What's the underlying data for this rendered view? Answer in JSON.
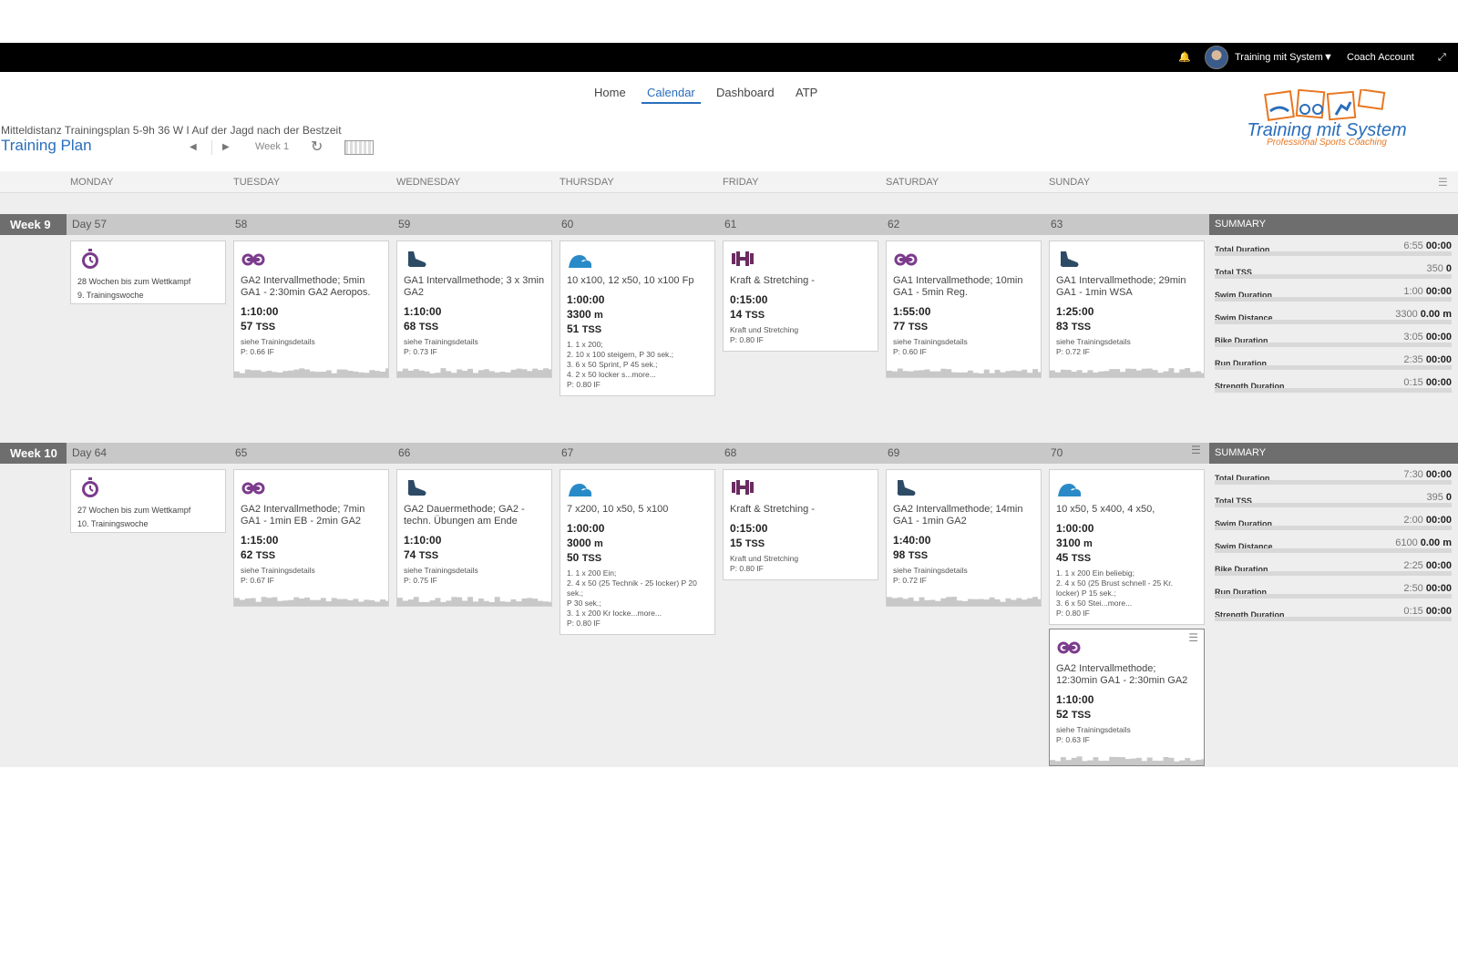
{
  "topbar": {
    "user_name": "Training mit System",
    "coach_account": "Coach Account"
  },
  "nav": {
    "items": [
      "Home",
      "Calendar",
      "Dashboard",
      "ATP"
    ],
    "active": "Calendar"
  },
  "plan": {
    "subtitle": "Mitteldistanz Trainingsplan 5-9h 36 W I Auf der Jagd nach der Bestzeit",
    "title": "Training Plan",
    "week_label": "Week 1"
  },
  "logo": {
    "text": "Training mit System",
    "sub": "Professional Sports Coaching"
  },
  "days": [
    "MONDAY",
    "TUESDAY",
    "WEDNESDAY",
    "THURSDAY",
    "FRIDAY",
    "SATURDAY",
    "SUNDAY"
  ],
  "colors": {
    "accent": "#2a6ebb",
    "bike": "#7b3b8c",
    "run": "#2e4b66",
    "swim": "#2a8ac8",
    "strength": "#6b2b60",
    "event": "#7b3b8c"
  },
  "weeks": [
    {
      "label": "Week 9",
      "day_nums": [
        "Day 57",
        "58",
        "59",
        "60",
        "61",
        "62",
        "63"
      ],
      "cards": [
        {
          "icon": "stopwatch-icon",
          "note1": "28 Wochen bis zum Wettkampf",
          "note2": "9. Trainingswoche"
        },
        {
          "icon": "bike-icon",
          "title": "GA2 Intervallmethode; 5min GA1 - 2:30min GA2 Aeropos.",
          "duration": "1:10:00",
          "tss": "57",
          "tss_unit": "TSS",
          "desc1": "siehe Trainingsdetails",
          "desc2": "P: 0.66 IF"
        },
        {
          "icon": "run-icon",
          "title": "GA1 Intervallmethode; 3 x 3min GA2",
          "duration": "1:10:00",
          "tss": "68",
          "tss_unit": "TSS",
          "desc1": "siehe Trainingsdetails",
          "desc2": "P: 0.73 IF"
        },
        {
          "icon": "swim-icon",
          "title": "10 x100, 12 x50, 10 x100 Fp",
          "duration": "1:00:00",
          "distance": "3300",
          "distance_unit": "m",
          "tss": "51",
          "tss_unit": "TSS",
          "steps": [
            "1. 1 x 200;",
            "2. 10 x 100 steigern, P 30 sek.;",
            "3. 6 x 50 Sprint, P 45 sek.;",
            "4. 2 x 50 locker s...more..."
          ],
          "desc2": "P: 0.80 IF"
        },
        {
          "icon": "strength-icon",
          "title": "Kraft & Stretching -",
          "duration": "0:15:00",
          "tss": "14",
          "tss_unit": "TSS",
          "desc1": "Kraft und Stretching",
          "desc2": "P: 0.80 IF"
        },
        {
          "icon": "bike-icon",
          "title": "GA1 Intervallmethode; 10min GA1 - 5min Reg.",
          "duration": "1:55:00",
          "tss": "77",
          "tss_unit": "TSS",
          "desc1": "siehe Trainingsdetails",
          "desc2": "P: 0.60 IF"
        },
        {
          "icon": "run-icon",
          "title": "GA1 Intervallmethode; 29min GA1 - 1min WSA",
          "duration": "1:25:00",
          "tss": "83",
          "tss_unit": "TSS",
          "desc1": "siehe Trainingsdetails",
          "desc2": "P: 0.72 IF"
        }
      ],
      "summary": {
        "heading": "SUMMARY",
        "rows": [
          {
            "label": "Total Duration",
            "planned": "6:55",
            "actual": "00:00"
          },
          {
            "label": "Total TSS",
            "planned": "350",
            "actual": "0"
          },
          {
            "label": "Swim Duration",
            "planned": "1:00",
            "actual": "00:00"
          },
          {
            "label": "Swim Distance",
            "planned": "3300",
            "actual": "0.00 m"
          },
          {
            "label": "Bike Duration",
            "planned": "3:05",
            "actual": "00:00"
          },
          {
            "label": "Run Duration",
            "planned": "2:35",
            "actual": "00:00"
          },
          {
            "label": "Strength Duration",
            "planned": "0:15",
            "actual": "00:00"
          }
        ]
      }
    },
    {
      "label": "Week 10",
      "day_nums": [
        "Day 64",
        "65",
        "66",
        "67",
        "68",
        "69",
        "70"
      ],
      "cards": [
        {
          "icon": "stopwatch-icon",
          "note1": "27 Wochen bis zum Wettkampf",
          "note2": "10. Trainingswoche"
        },
        {
          "icon": "bike-icon",
          "title": "GA2 Intervallmethode; 7min GA1 - 1min EB - 2min GA2",
          "duration": "1:15:00",
          "tss": "62",
          "tss_unit": "TSS",
          "desc1": "siehe Trainingsdetails",
          "desc2": "P: 0.67 IF"
        },
        {
          "icon": "run-icon",
          "title": "GA2 Dauermethode; GA2 - techn. Übungen am Ende",
          "duration": "1:10:00",
          "tss": "74",
          "tss_unit": "TSS",
          "desc1": "siehe Trainingsdetails",
          "desc2": "P: 0.75 IF"
        },
        {
          "icon": "swim-icon",
          "title": "7 x200, 10 x50, 5 x100",
          "duration": "1:00:00",
          "distance": "3000",
          "distance_unit": "m",
          "tss": "50",
          "tss_unit": "TSS",
          "steps": [
            "1. 1 x 200 Ein;",
            "2. 4 x 50 (25 Technik - 25 locker) P 20 sek.;",
            "P 30 sek.;",
            "3. 1 x 200 Kr locke...more..."
          ],
          "desc2": "P: 0.80 IF"
        },
        {
          "icon": "strength-icon",
          "title": "Kraft & Stretching -",
          "duration": "0:15:00",
          "tss": "15",
          "tss_unit": "TSS",
          "desc1": "Kraft und Stretching",
          "desc2": "P: 0.80 IF"
        },
        {
          "icon": "run-icon",
          "title": "GA2 Intervallmethode; 14min GA1 - 1min GA2",
          "duration": "1:40:00",
          "tss": "98",
          "tss_unit": "TSS",
          "desc1": "siehe Trainingsdetails",
          "desc2": "P: 0.72 IF"
        },
        {
          "icon": "swim-icon",
          "title": "10 x50, 5 x400, 4 x50,",
          "duration": "1:00:00",
          "distance": "3100",
          "distance_unit": "m",
          "tss": "45",
          "tss_unit": "TSS",
          "steps": [
            "1. 1 x 200 Ein beliebig;",
            "2. 4 x 50 (25 Brust schnell - 25 Kr. locker) P 15 sek.;",
            "3. 6 x 50 Stei...more..."
          ],
          "desc2": "P: 0.80 IF"
        }
      ],
      "extra_card": {
        "icon": "bike-icon",
        "title": "GA2 Intervallmethode; 12:30min GA1 - 2:30min GA2",
        "duration": "1:10:00",
        "tss": "52",
        "tss_unit": "TSS",
        "desc1": "siehe Trainingsdetails",
        "desc2": "P: 0.63 IF"
      },
      "summary": {
        "heading": "SUMMARY",
        "rows": [
          {
            "label": "Total Duration",
            "planned": "7:30",
            "actual": "00:00"
          },
          {
            "label": "Total TSS",
            "planned": "395",
            "actual": "0"
          },
          {
            "label": "Swim Duration",
            "planned": "2:00",
            "actual": "00:00"
          },
          {
            "label": "Swim Distance",
            "planned": "6100",
            "actual": "0.00 m"
          },
          {
            "label": "Bike Duration",
            "planned": "2:25",
            "actual": "00:00"
          },
          {
            "label": "Run Duration",
            "planned": "2:50",
            "actual": "00:00"
          },
          {
            "label": "Strength Duration",
            "planned": "0:15",
            "actual": "00:00"
          }
        ]
      }
    }
  ]
}
